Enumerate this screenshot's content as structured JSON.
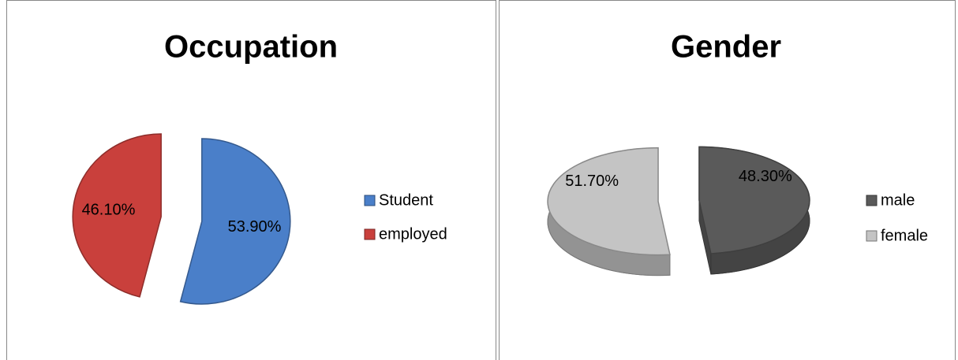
{
  "chart_data": [
    {
      "type": "pie",
      "title": "Occupation",
      "categories": [
        "Student",
        "employed"
      ],
      "values": [
        53.9,
        46.1
      ],
      "value_labels": [
        "53.90%",
        "46.10%"
      ],
      "colors": [
        "#4a7fc9",
        "#c9403c"
      ],
      "legend": "right",
      "three_d": false
    },
    {
      "type": "pie",
      "title": "Gender",
      "categories": [
        "male",
        "female"
      ],
      "values": [
        48.3,
        51.7
      ],
      "value_labels": [
        "48.30%",
        "51.70%"
      ],
      "colors": [
        "#5a5a5a",
        "#c4c4c4"
      ],
      "legend": "right",
      "three_d": true
    }
  ]
}
